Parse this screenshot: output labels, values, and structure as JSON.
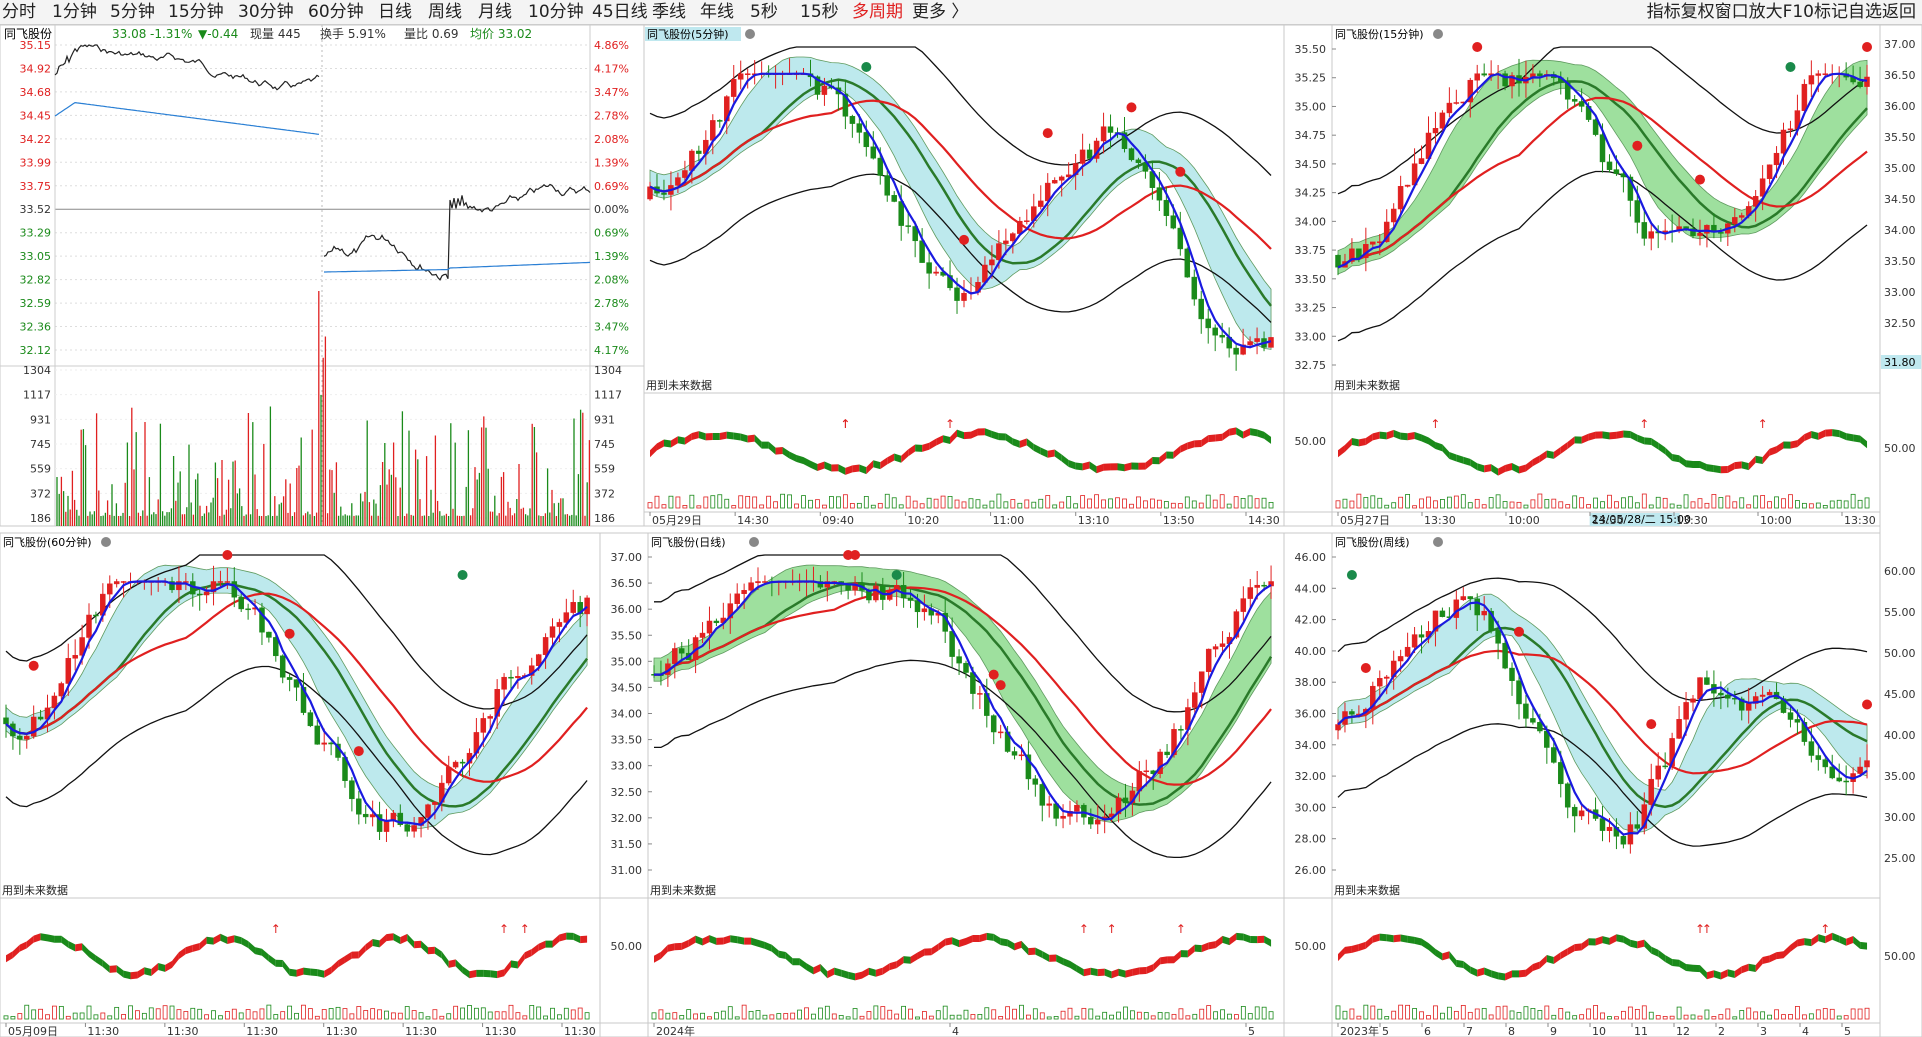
{
  "toolbar": {
    "periods": [
      "分时",
      "1分钟",
      "5分钟",
      "15分钟",
      "30分钟",
      "60分钟",
      "日线",
      "周线",
      "月线",
      "10分钟",
      "45日线",
      "季线",
      "年线",
      "5秒",
      "15秒",
      "多周期",
      "更多 〉"
    ],
    "active_index": 15,
    "right": "指标复权窗口放大F10标记自选返回"
  },
  "stock_name": "同飞股份",
  "future_note": "用到未来数据",
  "intraday": {
    "quote": {
      "price": "33.08",
      "pct": "-1.31%",
      "change": "▼-0.44",
      "volume": "现量 445",
      "turnover": "换手 5.91%",
      "vol_ratio": "量比 0.69",
      "avg": "均价 33.02"
    },
    "price_labels": [
      "35.15",
      "34.92",
      "34.68",
      "34.45",
      "34.22",
      "33.99",
      "33.75",
      "33.52",
      "33.29",
      "33.05",
      "32.82",
      "32.59",
      "32.36",
      "32.12"
    ],
    "pct_labels": [
      "4.86%",
      "4.17%",
      "3.47%",
      "2.78%",
      "2.08%",
      "1.39%",
      "0.69%",
      "0.00%",
      "0.69%",
      "1.39%",
      "2.08%",
      "2.78%",
      "3.47%",
      "4.17%"
    ],
    "vol_labels": [
      "1304",
      "1117",
      "931",
      "745",
      "559",
      "372",
      "186"
    ]
  },
  "panels": [
    {
      "title": "同飞股份(5分钟)",
      "highlight": true,
      "y_labels": [],
      "y_side": "none",
      "osc_label": "",
      "x_labels": [
        "05月29日",
        "14:30",
        "09:40",
        "10:20",
        "11:00",
        "13:10",
        "13:50",
        "14:30"
      ]
    },
    {
      "title": "同飞股份(15分钟)",
      "highlight": false,
      "y_labels": [
        "35.50",
        "35.25",
        "35.00",
        "34.75",
        "34.50",
        "34.25",
        "34.00",
        "33.75",
        "33.50",
        "33.25",
        "33.00",
        "32.75"
      ],
      "y_side": "left",
      "osc_label": "50.00",
      "x_labels": [
        "05月27日",
        "13:30",
        "10:00",
        "13:30",
        "13:30",
        "10:00",
        "13:30"
      ],
      "cursor_label": "24/05/28/二 15:00"
    },
    {
      "title": "同飞股份(60分钟)",
      "highlight": false,
      "y_labels": [],
      "y_side": "none",
      "osc_label": "",
      "x_labels": [
        "05月09日",
        "11:30",
        "11:30",
        "11:30",
        "11:30",
        "11:30",
        "11:30",
        "11:30"
      ]
    },
    {
      "title": "同飞股份(日线)",
      "highlight": false,
      "y_labels": [
        "37.00",
        "36.50",
        "36.00",
        "35.50",
        "35.00",
        "34.50",
        "34.00",
        "33.50",
        "33.00",
        "32.50",
        "32.00",
        "31.50",
        "31.00"
      ],
      "y_side": "left",
      "osc_label": "50.00",
      "x_labels": [
        "2024年",
        "4",
        "5"
      ]
    },
    {
      "title": "同飞股份(周线)",
      "highlight": false,
      "y_labels": [
        "46.00",
        "44.00",
        "42.00",
        "40.00",
        "38.00",
        "36.00",
        "34.00",
        "32.00",
        "30.00",
        "28.00",
        "26.00"
      ],
      "y_side": "left",
      "osc_label": "50.00",
      "x_labels": [
        "2023年",
        "5",
        "6",
        "7",
        "8",
        "9",
        "10",
        "11",
        "12",
        "2",
        "3",
        "4",
        "5"
      ]
    }
  ],
  "right_axis": {
    "top": [
      "37.00",
      "36.50",
      "36.00",
      "35.50",
      "35.00",
      "34.50",
      "34.00",
      "33.50",
      "33.00",
      "32.50"
    ],
    "top_tag": "31.80",
    "top_osc": "50.00",
    "bottom": [
      "60.00",
      "55.00",
      "50.00",
      "45.00",
      "40.00",
      "35.00",
      "30.00",
      "25.00"
    ],
    "bottom_osc": "50.00"
  },
  "colors": {
    "up": "#e02020",
    "down": "#1a8a1a",
    "green_band": "#7ed67e",
    "cyan_band": "#a8e2e8",
    "blue_line": "#1a1ae0",
    "avg_line": "#2a7fd4",
    "grid": "#bbbbbb"
  }
}
